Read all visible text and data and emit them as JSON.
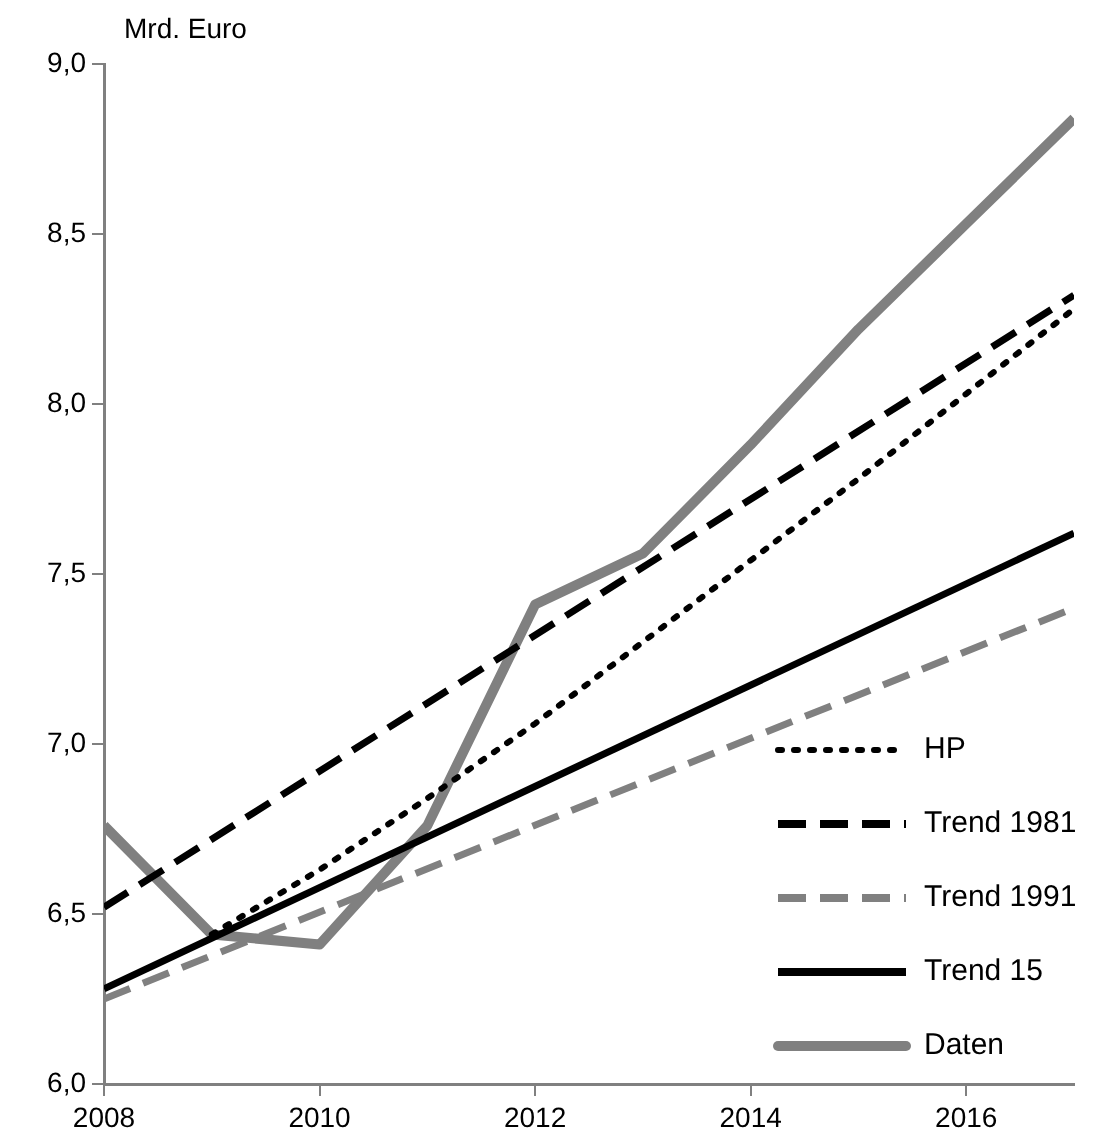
{
  "chart_data": {
    "type": "line",
    "ylabel": "Mrd. Euro",
    "xlim": [
      2008,
      2017
    ],
    "xticks": [
      2008,
      2010,
      2012,
      2014,
      2016
    ],
    "ylim": [
      6,
      9
    ],
    "yticks": [
      {
        "value": 6,
        "label": "6,0"
      },
      {
        "value": 6.5,
        "label": "6,5"
      },
      {
        "value": 7,
        "label": "7,0"
      },
      {
        "value": 7.5,
        "label": "7,5"
      },
      {
        "value": 8,
        "label": "8,0"
      },
      {
        "value": 8.5,
        "label": "8,5"
      },
      {
        "value": 9,
        "label": "9,0"
      }
    ],
    "grid": false,
    "legend": "bottom right",
    "marker": "none",
    "series": [
      {
        "name": "HP",
        "color": "#000000",
        "line_style": "dotted",
        "x": [
          2009,
          2010,
          2011,
          2012,
          2013,
          2014,
          2015,
          2016,
          2017
        ],
        "values": [
          6.44,
          6.63,
          6.84,
          7.06,
          7.3,
          7.54,
          7.78,
          8.03,
          8.28
        ]
      },
      {
        "name": "Trend 1981",
        "color": "#000000",
        "line_style": "dashed",
        "x": [
          2008,
          2017
        ],
        "values": [
          6.52,
          8.32
        ]
      },
      {
        "name": "Trend 1991",
        "color": "#808080",
        "line_style": "dashed",
        "x": [
          2008,
          2017
        ],
        "values": [
          6.25,
          7.4
        ]
      },
      {
        "name": "Trend 15",
        "color": "#000000",
        "line_style": "solid",
        "x": [
          2008,
          2017
        ],
        "values": [
          6.28,
          7.62
        ]
      },
      {
        "name": "Daten",
        "color": "#808080",
        "line_style": "solid",
        "x": [
          2008,
          2009,
          2010,
          2011,
          2012,
          2013,
          2014,
          2015,
          2016,
          2017
        ],
        "values": [
          6.76,
          6.44,
          6.41,
          6.76,
          7.41,
          7.56,
          7.88,
          8.22,
          8.53,
          8.84
        ]
      }
    ]
  }
}
